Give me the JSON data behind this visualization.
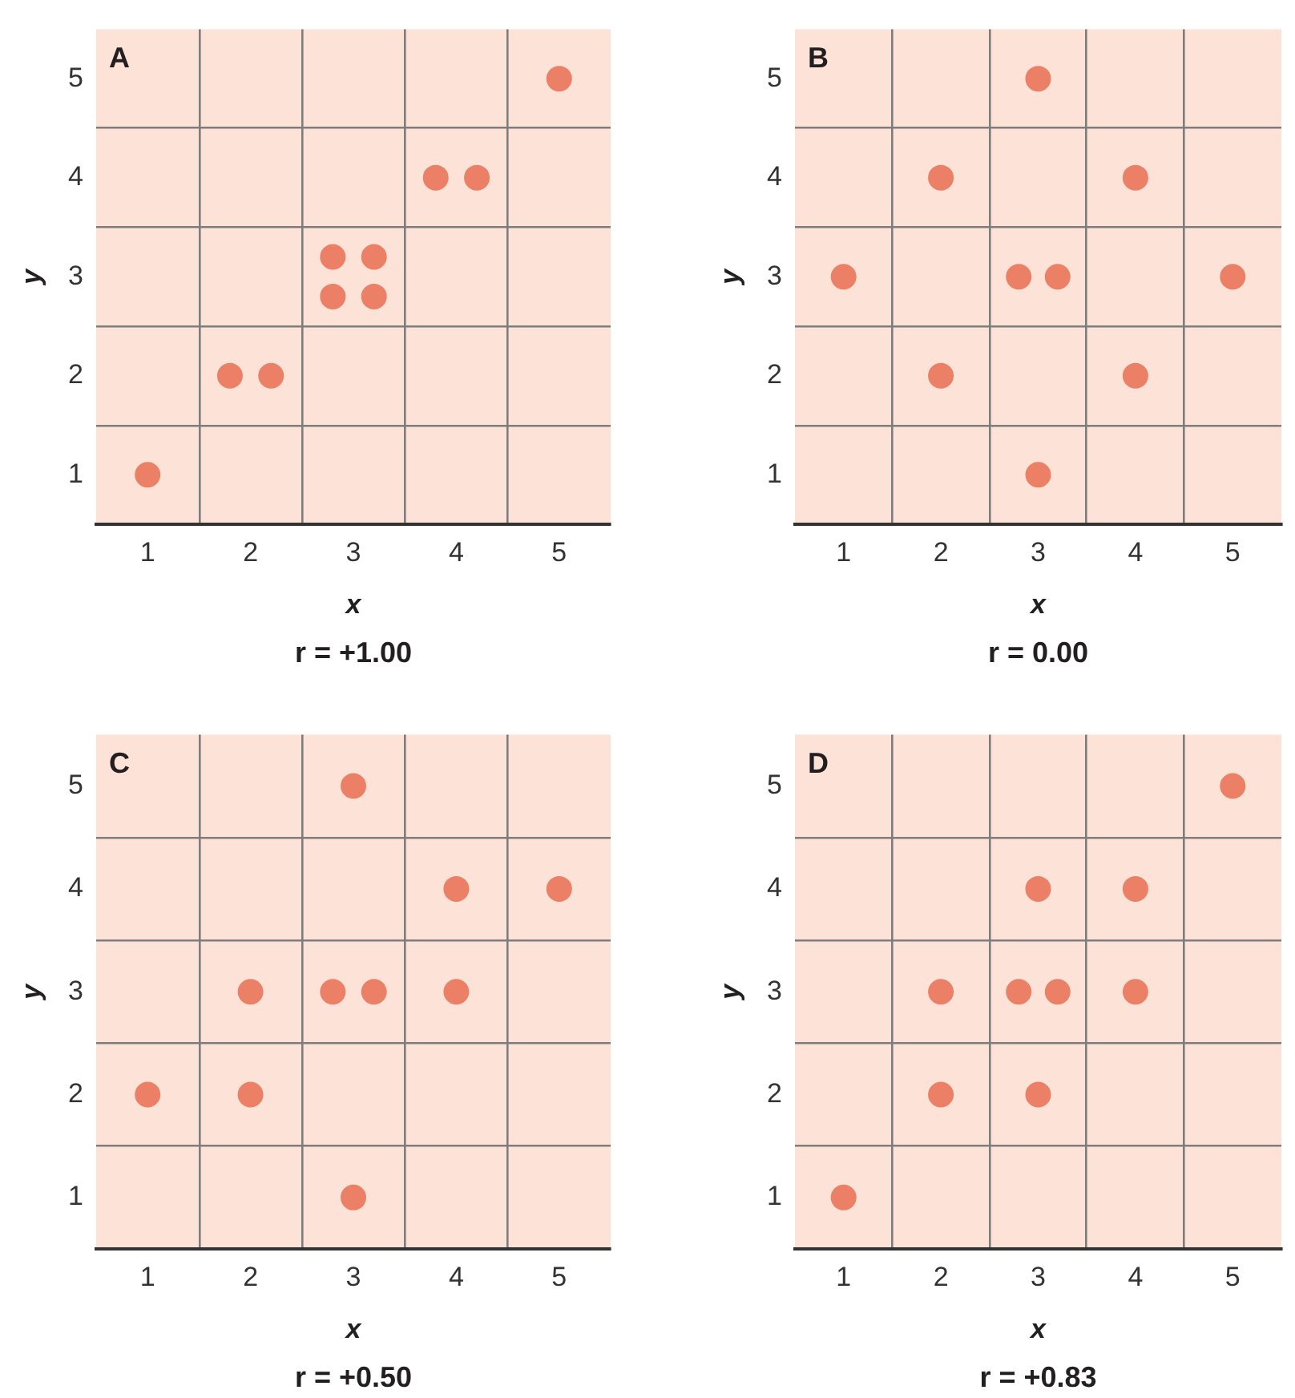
{
  "chart_data": [
    {
      "type": "scatter",
      "title": "A",
      "xlabel": "x",
      "ylabel": "y",
      "annotations": [
        "r = +1.00"
      ],
      "x": [
        1,
        1.8,
        2.2,
        2.8,
        3.2,
        2.8,
        3.2,
        3.8,
        4.2,
        5
      ],
      "values": [
        1,
        2,
        2,
        3.2,
        3.2,
        2.8,
        2.8,
        4,
        4,
        5
      ],
      "color": "#ec8066",
      "marker": "circle",
      "xlim": [
        0.5,
        5.5
      ],
      "ylim": [
        0.5,
        5.5
      ],
      "xticks": [
        1,
        {
          "value": 1.5,
          "label": null
        },
        2,
        {
          "value": 2.5,
          "label": null
        },
        3,
        {
          "value": 3.5,
          "label": null
        },
        4,
        {
          "value": 4.5,
          "label": null
        },
        5
      ],
      "yticks": [
        1,
        {
          "value": 1.5,
          "label": null
        },
        2,
        {
          "value": 2.5,
          "label": null
        },
        3,
        {
          "value": 3.5,
          "label": null
        },
        4,
        {
          "value": 4.5,
          "label": null
        },
        5
      ],
      "grid": true
    },
    {
      "type": "scatter",
      "title": "B",
      "xlabel": "x",
      "ylabel": "y",
      "annotations": [
        "r = 0.00"
      ],
      "x": [
        3,
        2,
        4,
        1,
        2.8,
        3.2,
        5,
        2,
        4,
        3
      ],
      "values": [
        5,
        4,
        4,
        3,
        3,
        3,
        3,
        2,
        2,
        1
      ],
      "color": "#ec8066",
      "marker": "circle",
      "xlim": [
        0.5,
        5.5
      ],
      "ylim": [
        0.5,
        5.5
      ],
      "xticks": [
        1,
        {
          "value": 1.5,
          "label": null
        },
        2,
        {
          "value": 2.5,
          "label": null
        },
        3,
        {
          "value": 3.5,
          "label": null
        },
        4,
        {
          "value": 4.5,
          "label": null
        },
        5
      ],
      "yticks": [
        1,
        {
          "value": 1.5,
          "label": null
        },
        2,
        {
          "value": 2.5,
          "label": null
        },
        3,
        {
          "value": 3.5,
          "label": null
        },
        4,
        {
          "value": 4.5,
          "label": null
        },
        5
      ],
      "grid": true
    },
    {
      "type": "scatter",
      "title": "C",
      "xlabel": "x",
      "ylabel": "y",
      "annotations": [
        "r = +0.50"
      ],
      "x": [
        3,
        4,
        5,
        2,
        2.8,
        3.2,
        4,
        1,
        2,
        3
      ],
      "values": [
        5,
        4,
        4,
        3,
        3,
        3,
        3,
        2,
        2,
        1
      ],
      "color": "#ec8066",
      "marker": "circle",
      "xlim": [
        0.5,
        5.5
      ],
      "ylim": [
        0.5,
        5.5
      ],
      "xticks": [
        1,
        {
          "value": 1.5,
          "label": null
        },
        2,
        {
          "value": 2.5,
          "label": null
        },
        3,
        {
          "value": 3.5,
          "label": null
        },
        4,
        {
          "value": 4.5,
          "label": null
        },
        5
      ],
      "yticks": [
        1,
        {
          "value": 1.5,
          "label": null
        },
        2,
        {
          "value": 2.5,
          "label": null
        },
        3,
        {
          "value": 3.5,
          "label": null
        },
        4,
        {
          "value": 4.5,
          "label": null
        },
        5
      ],
      "grid": true
    },
    {
      "type": "scatter",
      "title": "D",
      "xlabel": "x",
      "ylabel": "y",
      "annotations": [
        "r = +0.83"
      ],
      "x": [
        5,
        3,
        4,
        2,
        2.8,
        3.2,
        4,
        2,
        3,
        1
      ],
      "values": [
        5,
        4,
        4,
        3,
        3,
        3,
        3,
        2,
        2,
        1
      ],
      "color": "#ec8066",
      "marker": "circle",
      "xlim": [
        0.5,
        5.5
      ],
      "ylim": [
        0.5,
        5.5
      ],
      "xticks": [
        1,
        {
          "value": 1.5,
          "label": null
        },
        2,
        {
          "value": 2.5,
          "label": null
        },
        3,
        {
          "value": 3.5,
          "label": null
        },
        4,
        {
          "value": 4.5,
          "label": null
        },
        5
      ],
      "yticks": [
        1,
        {
          "value": 1.5,
          "label": null
        },
        2,
        {
          "value": 2.5,
          "label": null
        },
        3,
        {
          "value": 3.5,
          "label": null
        },
        4,
        {
          "value": 4.5,
          "label": null
        },
        5
      ],
      "grid": true
    }
  ]
}
